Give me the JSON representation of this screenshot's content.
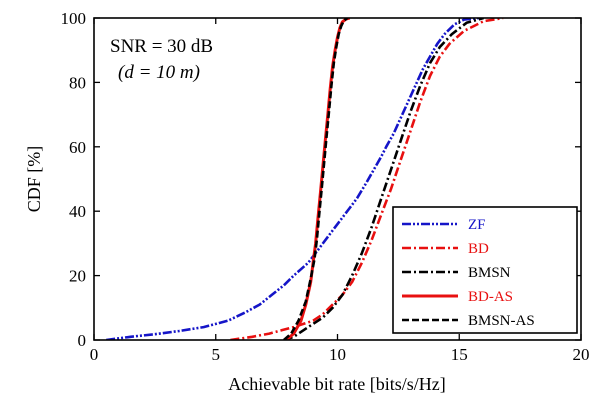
{
  "chart_data": {
    "type": "line",
    "xlabel": "Achievable bit rate [bits/s/Hz]",
    "ylabel": "CDF [%]",
    "xlim": [
      0,
      20
    ],
    "ylim": [
      0,
      100
    ],
    "xticks": [
      0,
      5,
      10,
      15,
      20
    ],
    "yticks": [
      0,
      20,
      40,
      60,
      80,
      100
    ],
    "grid": false,
    "legend_position": "bottom-right",
    "annotations": [
      {
        "id": "snr",
        "text": "SNR = 30 dB"
      },
      {
        "id": "dist",
        "text": "(d  = 10 m)"
      }
    ],
    "series": [
      {
        "name": "ZF",
        "color": "#1515c8",
        "dash": "dashdotdot",
        "x": [
          0.5,
          1.5,
          2.5,
          3.5,
          4.5,
          5.5,
          6.2,
          6.8,
          7.3,
          7.8,
          8.2,
          8.5,
          8.8,
          9.1,
          9.4,
          9.8,
          10.2,
          10.5,
          10.8,
          11.2,
          11.5,
          11.8,
          12.0,
          12.3,
          12.6,
          12.9,
          13.2,
          13.5,
          13.8,
          14.1,
          14.4,
          14.8,
          15.2,
          15.8
        ],
        "y": [
          0,
          1,
          1.8,
          2.8,
          4,
          6,
          8.5,
          11,
          14,
          17,
          20,
          22,
          24,
          27,
          30,
          34,
          38,
          41,
          44,
          49,
          53,
          57,
          60,
          64,
          69,
          74,
          79,
          84,
          88,
          92,
          95,
          98,
          99.5,
          100
        ]
      },
      {
        "name": "BD",
        "color": "#e81010",
        "dash": "dashdot",
        "x": [
          5.6,
          6.5,
          7.2,
          7.7,
          8.2,
          8.6,
          9.0,
          9.4,
          9.8,
          10.2,
          10.6,
          11.0,
          11.4,
          11.8,
          12.2,
          12.6,
          13.0,
          13.4,
          13.8,
          14.2,
          14.6,
          15.2,
          16.0,
          16.8
        ],
        "y": [
          0,
          1,
          2,
          3,
          4,
          5,
          6,
          8,
          11,
          14,
          18,
          24,
          31,
          39,
          47,
          56,
          65,
          74,
          82,
          88,
          92,
          96,
          99,
          100
        ]
      },
      {
        "name": "BMSN",
        "color": "#000000",
        "dash": "dashdot",
        "x": [
          7.8,
          8.2,
          8.6,
          9.0,
          9.4,
          9.8,
          10.2,
          10.6,
          11.0,
          11.4,
          11.8,
          12.2,
          12.6,
          13.0,
          13.4,
          13.8,
          14.2,
          14.7,
          15.3,
          16.0
        ],
        "y": [
          0,
          1,
          3,
          5,
          7,
          10,
          14,
          20,
          27,
          35,
          44,
          53,
          62,
          71,
          79,
          86,
          91,
          95,
          98.5,
          100
        ]
      },
      {
        "name": "BD-AS",
        "color": "#e81010",
        "dash": "solid",
        "x": [
          7.9,
          8.2,
          8.5,
          8.7,
          8.9,
          9.0,
          9.1,
          9.2,
          9.3,
          9.4,
          9.5,
          9.6,
          9.7,
          9.8,
          9.9,
          10.0,
          10.1,
          10.2,
          10.35,
          10.5
        ],
        "y": [
          0,
          2,
          6,
          11,
          18,
          24,
          30,
          38,
          46,
          54,
          62,
          70,
          78,
          85,
          90,
          94,
          97,
          98.8,
          99.7,
          100
        ]
      },
      {
        "name": "BMSN-AS",
        "color": "#000000",
        "dash": "dashed",
        "x": [
          7.8,
          8.1,
          8.4,
          8.7,
          8.9,
          9.05,
          9.15,
          9.25,
          9.35,
          9.45,
          9.55,
          9.65,
          9.75,
          9.85,
          9.95,
          10.05,
          10.15,
          10.25,
          10.4
        ],
        "y": [
          0,
          2,
          6,
          12,
          19,
          25,
          31,
          39,
          47,
          55,
          63,
          71,
          79,
          86,
          91,
          95,
          97.5,
          99,
          100
        ]
      }
    ]
  }
}
